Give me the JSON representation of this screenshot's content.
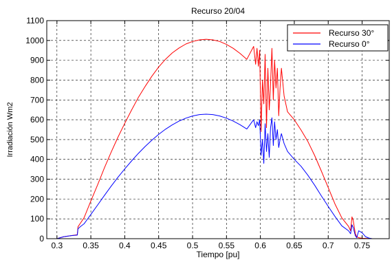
{
  "chart_data": {
    "type": "line",
    "title": "Recurso 20/04",
    "xlabel": "Tiempo [pu]",
    "ylabel": "Irradiación Wm2",
    "xlim": [
      0.285,
      0.79
    ],
    "ylim": [
      0,
      1100
    ],
    "xticks": [
      0.3,
      0.35,
      0.4,
      0.45,
      0.5,
      0.55,
      0.6,
      0.65,
      0.7,
      0.75
    ],
    "xtick_labels": [
      "0.3",
      "0.35",
      "0.4",
      "0.45",
      "0.5",
      "0.55",
      "0.6",
      "0.65",
      "0.7",
      "0.75"
    ],
    "yticks": [
      0,
      100,
      200,
      300,
      400,
      500,
      600,
      700,
      800,
      900,
      1000,
      1100
    ],
    "ytick_labels": [
      "0",
      "100",
      "200",
      "300",
      "400",
      "500",
      "600",
      "700",
      "800",
      "900",
      "1000",
      "1100"
    ],
    "grid": true,
    "legend_position": "top-right",
    "series": [
      {
        "name": "Recurso 30°",
        "color": "#ff0000",
        "x": [
          0.285,
          0.3,
          0.31,
          0.32,
          0.33,
          0.331,
          0.335,
          0.34,
          0.35,
          0.36,
          0.37,
          0.38,
          0.39,
          0.4,
          0.41,
          0.42,
          0.43,
          0.44,
          0.45,
          0.46,
          0.47,
          0.48,
          0.49,
          0.5,
          0.51,
          0.52,
          0.53,
          0.54,
          0.55,
          0.56,
          0.57,
          0.58,
          0.59,
          0.593,
          0.595,
          0.597,
          0.599,
          0.601,
          0.603,
          0.605,
          0.607,
          0.609,
          0.611,
          0.613,
          0.615,
          0.617,
          0.619,
          0.621,
          0.623,
          0.625,
          0.627,
          0.629,
          0.631,
          0.635,
          0.64,
          0.65,
          0.66,
          0.67,
          0.68,
          0.69,
          0.7,
          0.71,
          0.72,
          0.73,
          0.733,
          0.735,
          0.737,
          0.74,
          0.742,
          0.745,
          0.75,
          0.76,
          0.765,
          0.77,
          0.79
        ],
        "y": [
          0,
          0,
          10,
          15,
          20,
          60,
          80,
          105,
          190,
          272,
          357,
          437,
          512,
          582,
          649,
          712,
          768,
          820,
          866,
          905,
          937,
          962,
          982,
          995,
          1003,
          1006,
          1003,
          995,
          980,
          960,
          935,
          905,
          970,
          880,
          960,
          870,
          950,
          540,
          800,
          680,
          930,
          560,
          860,
          650,
          780,
          960,
          700,
          900,
          760,
          860,
          620,
          760,
          860,
          720,
          640,
          600,
          548,
          490,
          420,
          340,
          258,
          175,
          105,
          62,
          40,
          110,
          90,
          25,
          10,
          5,
          2,
          1,
          0,
          0,
          0
        ],
        "values": [
          0,
          0,
          10,
          15,
          20,
          60,
          80,
          105,
          190,
          272,
          357,
          437,
          512,
          582,
          649,
          712,
          768,
          820,
          866,
          905,
          937,
          962,
          982,
          995,
          1003,
          1006,
          1003,
          995,
          980,
          960,
          935,
          905,
          970,
          880,
          960,
          870,
          950,
          540,
          800,
          680,
          930,
          560,
          860,
          650,
          780,
          960,
          700,
          900,
          760,
          860,
          620,
          760,
          860,
          720,
          640,
          600,
          548,
          490,
          420,
          340,
          258,
          175,
          105,
          62,
          40,
          110,
          90,
          25,
          10,
          5,
          2,
          1,
          0,
          0,
          0
        ]
      },
      {
        "name": "Recurso 0°",
        "color": "#0000ff",
        "x": [
          0.285,
          0.3,
          0.31,
          0.32,
          0.33,
          0.331,
          0.335,
          0.34,
          0.35,
          0.36,
          0.37,
          0.38,
          0.39,
          0.4,
          0.41,
          0.42,
          0.43,
          0.44,
          0.45,
          0.46,
          0.47,
          0.48,
          0.49,
          0.5,
          0.51,
          0.52,
          0.53,
          0.54,
          0.55,
          0.56,
          0.57,
          0.58,
          0.59,
          0.593,
          0.595,
          0.597,
          0.599,
          0.601,
          0.603,
          0.605,
          0.607,
          0.609,
          0.611,
          0.613,
          0.615,
          0.617,
          0.619,
          0.621,
          0.623,
          0.625,
          0.627,
          0.629,
          0.631,
          0.635,
          0.64,
          0.65,
          0.66,
          0.67,
          0.68,
          0.69,
          0.7,
          0.71,
          0.72,
          0.73,
          0.733,
          0.735,
          0.737,
          0.74,
          0.742,
          0.745,
          0.75,
          0.755,
          0.76,
          0.765,
          0.77,
          0.79
        ],
        "y": [
          0,
          0,
          10,
          15,
          18,
          50,
          62,
          75,
          122,
          170,
          218,
          265,
          310,
          352,
          392,
          430,
          465,
          497,
          526,
          552,
          574,
          593,
          608,
          619,
          626,
          628,
          626,
          619,
          608,
          593,
          575,
          553,
          600,
          560,
          590,
          570,
          600,
          420,
          500,
          380,
          580,
          440,
          530,
          410,
          560,
          610,
          470,
          590,
          500,
          550,
          460,
          500,
          530,
          480,
          440,
          400,
          365,
          320,
          270,
          215,
          163,
          112,
          65,
          40,
          25,
          70,
          55,
          15,
          5,
          40,
          30,
          10,
          3,
          0,
          0,
          0
        ],
        "values": [
          0,
          0,
          10,
          15,
          18,
          50,
          62,
          75,
          122,
          170,
          218,
          265,
          310,
          352,
          392,
          430,
          465,
          497,
          526,
          552,
          574,
          593,
          608,
          619,
          626,
          628,
          626,
          619,
          608,
          593,
          575,
          553,
          600,
          560,
          590,
          570,
          600,
          420,
          500,
          380,
          580,
          440,
          530,
          410,
          560,
          610,
          470,
          590,
          500,
          550,
          460,
          500,
          530,
          480,
          440,
          400,
          365,
          320,
          270,
          215,
          163,
          112,
          65,
          40,
          25,
          70,
          55,
          15,
          5,
          40,
          30,
          10,
          3,
          0,
          0,
          0
        ]
      }
    ]
  }
}
